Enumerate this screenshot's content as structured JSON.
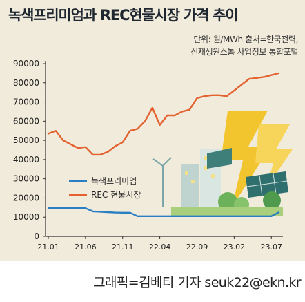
{
  "title": "녹색프리미엄과 REC현물시장 가격 추이",
  "unit_line1": "단위: 원/MWh   출처=한국전력,",
  "unit_line2": "신재생원스톱 사업정보 통합포털",
  "credit": "그래픽=김베티 기자 seuk22@ekn.kr",
  "chart_data": {
    "type": "line",
    "x": [
      "21.01",
      "21.02",
      "21.03",
      "21.04",
      "21.05",
      "21.06",
      "21.07",
      "21.08",
      "21.09",
      "21.10",
      "21.11",
      "21.12",
      "22.01",
      "22.02",
      "22.03",
      "22.04",
      "22.05",
      "22.06",
      "22.07",
      "22.08",
      "22.09",
      "22.10",
      "22.11",
      "22.12",
      "23.01",
      "23.02",
      "23.03",
      "23.04",
      "23.05",
      "23.06",
      "23.07",
      "23.08"
    ],
    "xtick_labels": [
      "21.01",
      "21.06",
      "21.11",
      "22.04",
      "22.09",
      "23.02",
      "23.07"
    ],
    "yticks": [
      0,
      10000,
      20000,
      30000,
      40000,
      50000,
      60000,
      70000,
      80000,
      90000
    ],
    "ylim": [
      0,
      90000
    ],
    "series": [
      {
        "name": "녹색프리미엄",
        "color": "#2a7ec4",
        "values": [
          14700,
          14700,
          14700,
          14700,
          14700,
          14700,
          13000,
          12800,
          12600,
          12400,
          12300,
          12300,
          10500,
          10500,
          10500,
          10500,
          10500,
          10500,
          10500,
          10500,
          10500,
          10500,
          10500,
          10500,
          10500,
          10500,
          10500,
          10500,
          10500,
          10500,
          10500,
          12500
        ]
      },
      {
        "name": "REC 현물시장",
        "color": "#e3622f",
        "values": [
          53500,
          55000,
          50000,
          48000,
          46000,
          46500,
          42500,
          42500,
          44000,
          47000,
          49000,
          55000,
          56000,
          60000,
          67000,
          58000,
          63000,
          63000,
          65000,
          66000,
          72000,
          73000,
          73500,
          73500,
          73000,
          76000,
          79000,
          82000,
          82500,
          83000,
          84000,
          85000
        ]
      }
    ]
  },
  "icons": [
    "bolt-icon",
    "solar-panel-icon",
    "wind-turbine-icon",
    "building-icon",
    "tree-icon"
  ]
}
